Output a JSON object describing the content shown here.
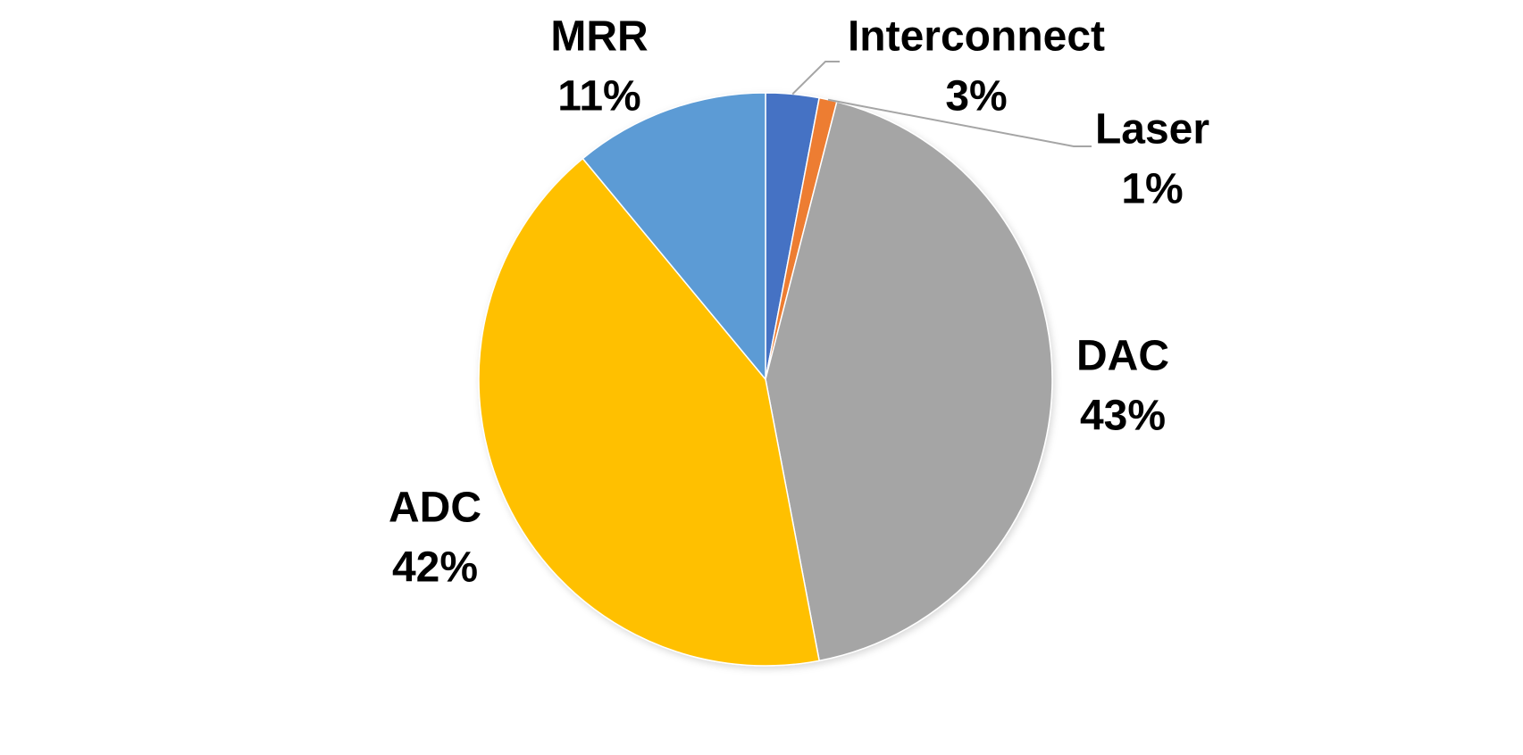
{
  "chart_data": {
    "type": "pie",
    "categories": [
      "Interconnect",
      "Laser",
      "DAC",
      "ADC",
      "MRR"
    ],
    "values": [
      3,
      1,
      43,
      42,
      11
    ],
    "value_labels": [
      "3%",
      "1%",
      "43%",
      "42%",
      "11%"
    ],
    "colors": [
      "#4472c4",
      "#ed7d31",
      "#a5a5a5",
      "#ffc000",
      "#5b9bd5"
    ]
  }
}
